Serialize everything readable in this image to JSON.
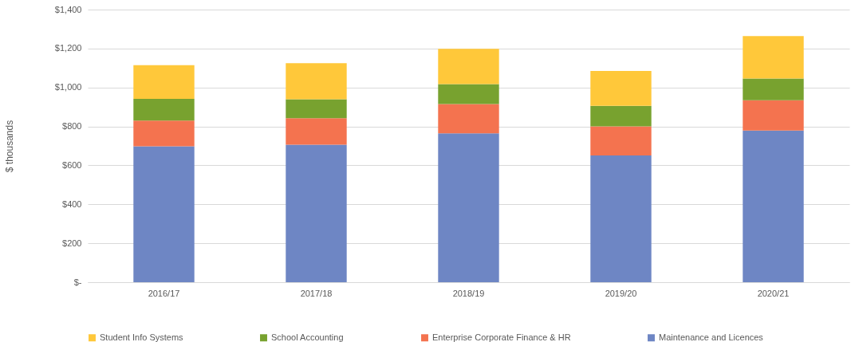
{
  "chart_data": {
    "type": "bar",
    "stacked": true,
    "ylabel": "$ thousands",
    "categories": [
      "2016/17",
      "2017/18",
      "2018/19",
      "2019/20",
      "2020/21"
    ],
    "series": [
      {
        "name": "Maintenance and Licences",
        "color": "#6e86c4",
        "values": [
          698,
          706,
          764,
          651,
          779
        ]
      },
      {
        "name": "Enterprise Corporate Finance & HR",
        "color": "#f4734f",
        "values": [
          132,
          136,
          151,
          149,
          155
        ]
      },
      {
        "name": "School Accounting",
        "color": "#78a22f",
        "values": [
          112,
          97,
          102,
          106,
          112
        ]
      },
      {
        "name": "Student Info Systems",
        "color": "#ffc83a",
        "values": [
          172,
          186,
          181,
          179,
          218
        ]
      }
    ],
    "ylim": [
      0,
      1400
    ],
    "yticks": [
      {
        "value": 0,
        "label": "$-"
      },
      {
        "value": 200,
        "label": "$200"
      },
      {
        "value": 400,
        "label": "$400"
      },
      {
        "value": 600,
        "label": "$600"
      },
      {
        "value": 800,
        "label": "$800"
      },
      {
        "value": 1000,
        "label": "$1,000"
      },
      {
        "value": 1200,
        "label": "$1,200"
      },
      {
        "value": 1400,
        "label": "$1,400"
      }
    ],
    "grid": "y",
    "legend": "bottom"
  }
}
